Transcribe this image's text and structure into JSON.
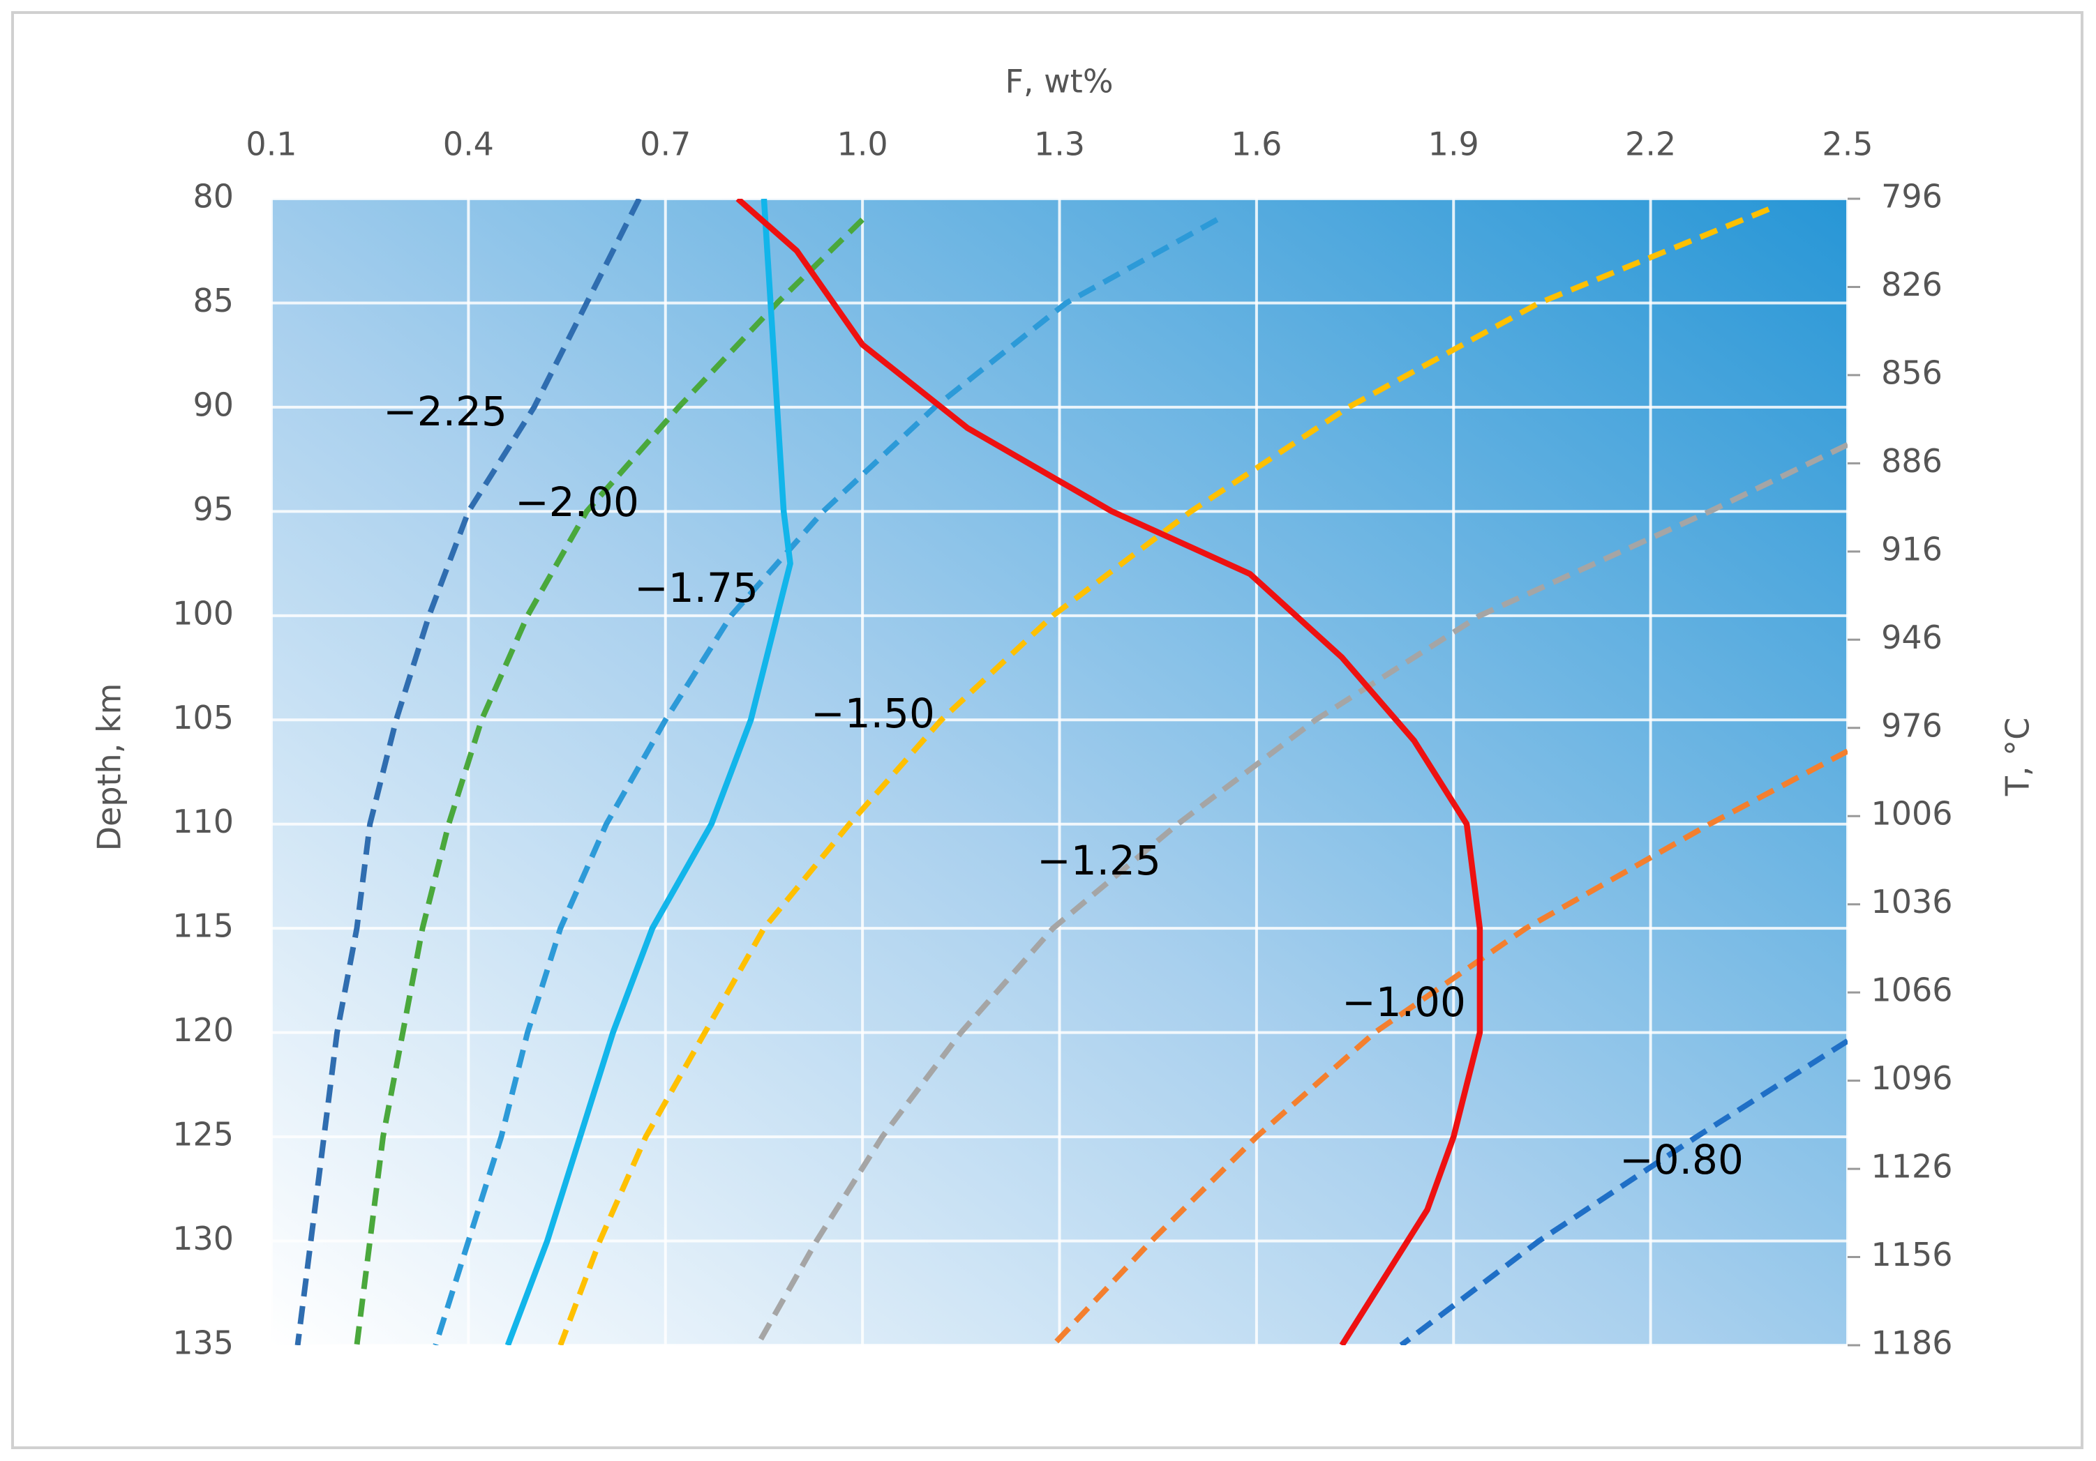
{
  "chart_data": {
    "type": "line",
    "x_title": "F, wt%",
    "y_title": "Depth, km",
    "y2_title": "T, °C",
    "xlim": [
      0.1,
      2.5
    ],
    "xticks": [
      0.1,
      0.4,
      0.7,
      {
        "value": 1,
        "label": "1.0"
      },
      1.3,
      1.6,
      1.9,
      2.2,
      2.5
    ],
    "ylim": [
      80,
      135
    ],
    "y_inverted": true,
    "yticks": [
      80,
      85,
      90,
      95,
      100,
      105,
      110,
      115,
      120,
      125,
      130,
      135
    ],
    "y2lim": [
      796,
      1186
    ],
    "y2ticks": [
      796,
      826,
      856,
      886,
      916,
      946,
      976,
      1006,
      1036,
      1066,
      1096,
      1126,
      1156,
      1186
    ],
    "grid": true,
    "series": [
      {
        "name": "−2.25",
        "color": "#2f6db0",
        "dashed": true,
        "x": [
          0.66,
          0.58,
          0.5,
          0.4,
          0.34,
          0.29,
          0.25,
          0.23,
          0.2,
          0.18,
          0.16,
          0.14
        ],
        "values": [
          80,
          85,
          90,
          95,
          100,
          105,
          110,
          115,
          120,
          125,
          130,
          135
        ]
      },
      {
        "name": "−2.00",
        "color": "#4aa83c",
        "dashed": true,
        "x": [
          1.0,
          0.87,
          0.72,
          0.58,
          0.49,
          0.42,
          0.37,
          0.33,
          0.3,
          0.27,
          0.25,
          0.23
        ],
        "values": [
          81,
          85,
          90,
          95,
          100,
          105,
          110,
          115,
          120,
          125,
          130,
          135
        ]
      },
      {
        "name": "−1.75",
        "color": "#2c9ad8",
        "dashed": true,
        "x": [
          1.54,
          1.31,
          1.11,
          0.94,
          0.8,
          0.7,
          0.61,
          0.54,
          0.49,
          0.45,
          0.4,
          0.35
        ],
        "values": [
          81,
          85,
          90,
          95,
          100,
          105,
          110,
          115,
          120,
          125,
          130,
          135
        ]
      },
      {
        "name": "−1.50",
        "color": "#ffc000",
        "dashed": true,
        "x": [
          2.38,
          2.03,
          1.74,
          1.5,
          1.29,
          1.12,
          0.98,
          0.85,
          0.76,
          0.67,
          0.6,
          0.54
        ],
        "values": [
          80.5,
          85,
          90,
          95,
          100,
          105,
          110,
          115,
          120,
          125,
          130,
          135
        ]
      },
      {
        "name": "−1.25",
        "color": "#a5a5a5",
        "dashed": true,
        "x": [
          2.5,
          2.29,
          1.94,
          1.69,
          1.48,
          1.29,
          1.15,
          1.03,
          0.93,
          0.84
        ],
        "values": [
          91.8,
          95,
          100,
          105,
          110,
          115,
          120,
          125,
          130,
          135
        ]
      },
      {
        "name": "−1.00",
        "color": "#f47f2e",
        "dashed": true,
        "x": [
          2.5,
          2.29,
          2.01,
          1.78,
          1.6,
          1.44,
          1.29
        ],
        "values": [
          106.5,
          110,
          115,
          120,
          125,
          130,
          135
        ]
      },
      {
        "name": "−0.80",
        "color": "#1f6fc6",
        "dashed": true,
        "x": [
          2.5,
          2.27,
          2.03,
          1.82
        ],
        "values": [
          120.4,
          125,
          130,
          135
        ]
      },
      {
        "color": "#12b5ea",
        "dashed": false,
        "x": [
          0.85,
          0.86,
          0.87,
          0.88,
          0.89,
          0.87,
          0.83,
          0.77,
          0.68,
          0.62,
          0.57,
          0.52,
          0.46
        ],
        "values": [
          80,
          85,
          90,
          95,
          97.5,
          100,
          105,
          110,
          115,
          120,
          125,
          130,
          135
        ]
      },
      {
        "color": "#ee1111",
        "dashed": false,
        "x": [
          0.81,
          0.9,
          1.0,
          1.16,
          1.38,
          1.59,
          1.66,
          1.73,
          1.84,
          1.92,
          1.94,
          1.94,
          1.9,
          1.86,
          1.81,
          1.73
        ],
        "values": [
          80,
          82.5,
          87,
          91,
          95,
          98,
          100,
          102,
          106,
          110,
          115,
          120,
          125,
          128.5,
          131,
          135
        ]
      }
    ]
  }
}
